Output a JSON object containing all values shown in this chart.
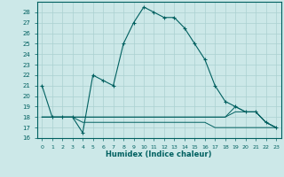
{
  "xlabel": "Humidex (Indice chaleur)",
  "x": [
    0,
    1,
    2,
    3,
    4,
    5,
    6,
    7,
    8,
    9,
    10,
    11,
    12,
    13,
    14,
    15,
    16,
    17,
    18,
    19,
    20,
    21,
    22,
    23
  ],
  "main_y": [
    21,
    18,
    18,
    18,
    16.5,
    22,
    21.5,
    21,
    25,
    27,
    28.5,
    28,
    27.5,
    27.5,
    26.5,
    25,
    23.5,
    21,
    19.5,
    19,
    18.5,
    18.5,
    17.5,
    17
  ],
  "line2_y": [
    18,
    18,
    18,
    18,
    18,
    18,
    18,
    18,
    18,
    18,
    18,
    18,
    18,
    18,
    18,
    18,
    18,
    18,
    18,
    18.5,
    18.5,
    18.5,
    17.5,
    17
  ],
  "line3_y": [
    18,
    18,
    18,
    18,
    18,
    18,
    18,
    18,
    18,
    18,
    18,
    18,
    18,
    18,
    18,
    18,
    18,
    18,
    18,
    19,
    18.5,
    18.5,
    17.5,
    17
  ],
  "line4_y": [
    18,
    18,
    18,
    18,
    17.5,
    17.5,
    17.5,
    17.5,
    17.5,
    17.5,
    17.5,
    17.5,
    17.5,
    17.5,
    17.5,
    17.5,
    17.5,
    17,
    17,
    17,
    17,
    17,
    17,
    17
  ],
  "ylim": [
    16,
    29
  ],
  "xlim": [
    -0.5,
    23.5
  ],
  "yticks": [
    16,
    17,
    18,
    19,
    20,
    21,
    22,
    23,
    24,
    25,
    26,
    27,
    28
  ],
  "color": "#006060",
  "bg_color": "#cce8e8",
  "grid_color": "#aad0d0"
}
